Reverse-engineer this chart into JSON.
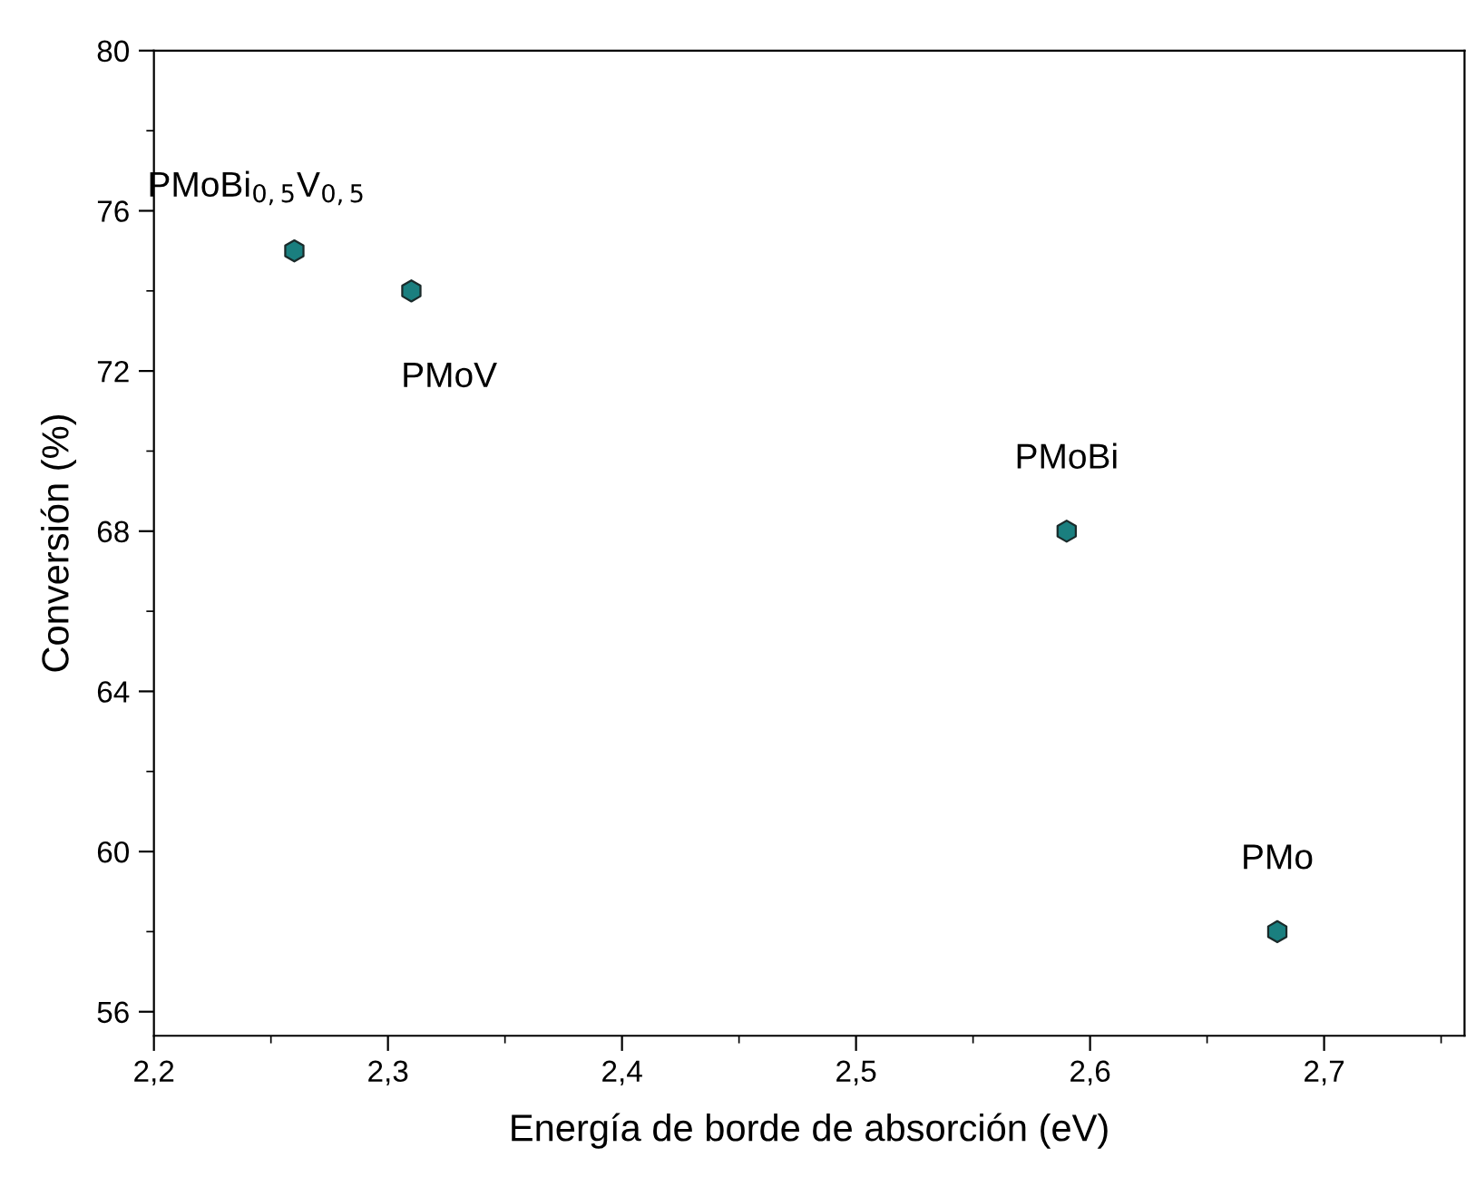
{
  "chart_data": {
    "type": "scatter",
    "xlabel": "Energía de borde de absorción (eV)",
    "ylabel": "Conversión (%)",
    "x": [
      2.26,
      2.31,
      2.59,
      2.68
    ],
    "series": [
      {
        "color": "#1a7f7f",
        "values": [
          75,
          74,
          68,
          58
        ]
      }
    ],
    "xlim": [
      2.2,
      2.76
    ],
    "ylim": [
      55.4,
      80
    ],
    "xticks": [
      {
        "value": 2.2,
        "label": "2,2"
      },
      {
        "value": 2.3,
        "label": "2,3"
      },
      {
        "value": 2.4,
        "label": "2,4"
      },
      {
        "value": 2.5,
        "label": "2,5"
      },
      {
        "value": 2.6,
        "label": "2,6"
      },
      {
        "value": 2.7,
        "label": "2,7"
      }
    ],
    "yticks": [
      56,
      60,
      64,
      68,
      72,
      76,
      80
    ],
    "annotations": [
      {
        "text": "PMoBi$_{0,5}$V$_{0,5}$",
        "x": 2.26,
        "y": 75
      },
      {
        "text": "PMoV",
        "x": 2.31,
        "y": 74
      },
      {
        "text": "PMoBi",
        "x": 2.59,
        "y": 68
      },
      {
        "text": "PMo",
        "x": 2.68,
        "y": 58
      }
    ],
    "grid": false,
    "legend": false
  }
}
